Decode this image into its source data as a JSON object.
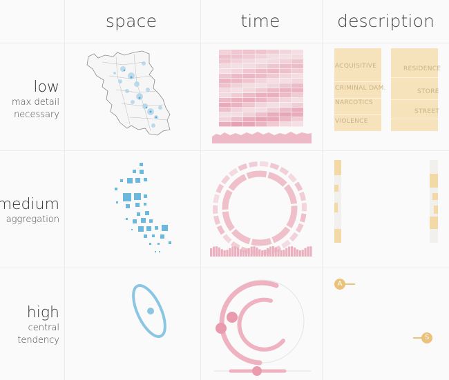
{
  "columns": {
    "space": "space",
    "time": "time",
    "description": "description"
  },
  "rows": {
    "low": {
      "title": "low",
      "subtitle_line1": "max detail",
      "subtitle_line2": "necessary"
    },
    "medium": {
      "title": "medium",
      "subtitle_line1": "aggregation"
    },
    "high": {
      "title": "high",
      "subtitle_line1": "central",
      "subtitle_line2": "tendency"
    }
  },
  "description_low": {
    "left_labels": [
      "ACQUISITIVE",
      "CRIMINAL DAM.",
      "NARCOTICS",
      "VIOLENCE"
    ],
    "right_labels": [
      "RESIDENCE",
      "STORE",
      "STREET"
    ]
  },
  "description_high": {
    "marker_a": "A",
    "marker_s": "S"
  },
  "colors": {
    "space": "#7ec2dd",
    "time": "#e9a9ba",
    "description": "#f0d9a6",
    "desc_marker": "#eac27a"
  }
}
